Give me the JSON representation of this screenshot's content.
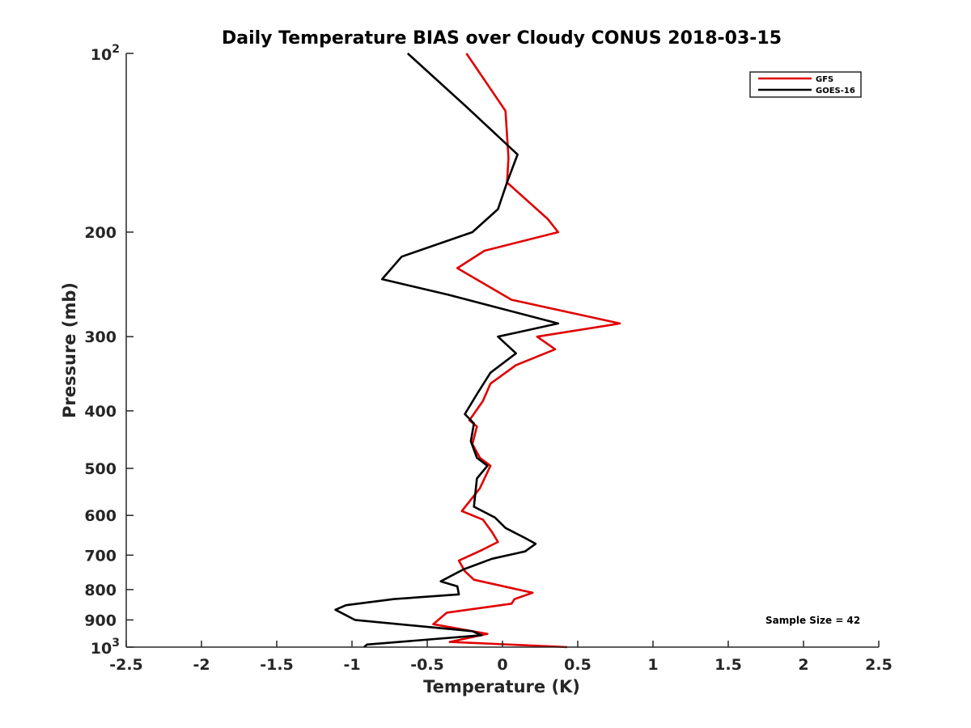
{
  "chart_data": {
    "type": "line",
    "title": "Daily Temperature BIAS over Cloudy CONUS 2018-03-15",
    "xlabel": "Temperature (K)",
    "ylabel": "Pressure (mb)",
    "xlim": [
      -2.5,
      2.5
    ],
    "ylim": [
      1000,
      100
    ],
    "yscale": "log",
    "ydirection": "reversed",
    "grid": false,
    "legend_position": "top-right",
    "x_ticks": [
      -2.5,
      -2,
      -1.5,
      -1,
      -0.5,
      0,
      0.5,
      1,
      1.5,
      2,
      2.5
    ],
    "x_tick_labels": [
      "-2.5",
      "-2",
      "-1.5",
      "-1",
      "-0.5",
      "0",
      "0.5",
      "1",
      "1.5",
      "2",
      "2.5"
    ],
    "y_ticks": [
      100,
      200,
      300,
      400,
      500,
      600,
      700,
      800,
      900,
      1000
    ],
    "y_tick_labels": [
      {
        "base": "10",
        "exp": "2"
      },
      {
        "base": "200",
        "exp": ""
      },
      {
        "base": "300",
        "exp": ""
      },
      {
        "base": "400",
        "exp": ""
      },
      {
        "base": "500",
        "exp": ""
      },
      {
        "base": "600",
        "exp": ""
      },
      {
        "base": "700",
        "exp": ""
      },
      {
        "base": "800",
        "exp": ""
      },
      {
        "base": "900",
        "exp": ""
      },
      {
        "base": "10",
        "exp": "3"
      }
    ],
    "series": [
      {
        "name": "GFS",
        "color": "#e00000",
        "points": [
          {
            "x": -0.24,
            "y": 100
          },
          {
            "x": 0.02,
            "y": 125
          },
          {
            "x": 0.04,
            "y": 150
          },
          {
            "x": 0.03,
            "y": 165
          },
          {
            "x": 0.3,
            "y": 190
          },
          {
            "x": 0.37,
            "y": 200
          },
          {
            "x": -0.12,
            "y": 215
          },
          {
            "x": -0.3,
            "y": 230
          },
          {
            "x": 0.06,
            "y": 260
          },
          {
            "x": 0.78,
            "y": 285
          },
          {
            "x": 0.23,
            "y": 300
          },
          {
            "x": 0.35,
            "y": 315
          },
          {
            "x": 0.09,
            "y": 335
          },
          {
            "x": -0.08,
            "y": 360
          },
          {
            "x": -0.13,
            "y": 385
          },
          {
            "x": -0.22,
            "y": 415
          },
          {
            "x": -0.17,
            "y": 425
          },
          {
            "x": -0.2,
            "y": 455
          },
          {
            "x": -0.15,
            "y": 480
          },
          {
            "x": -0.08,
            "y": 495
          },
          {
            "x": -0.15,
            "y": 540
          },
          {
            "x": -0.27,
            "y": 590
          },
          {
            "x": -0.13,
            "y": 610
          },
          {
            "x": -0.07,
            "y": 640
          },
          {
            "x": -0.03,
            "y": 665
          },
          {
            "x": -0.13,
            "y": 685
          },
          {
            "x": -0.29,
            "y": 715
          },
          {
            "x": -0.25,
            "y": 745
          },
          {
            "x": -0.19,
            "y": 770
          },
          {
            "x": 0.2,
            "y": 810
          },
          {
            "x": 0.08,
            "y": 830
          },
          {
            "x": 0.06,
            "y": 845
          },
          {
            "x": -0.37,
            "y": 875
          },
          {
            "x": -0.46,
            "y": 915
          },
          {
            "x": -0.1,
            "y": 950
          },
          {
            "x": -0.35,
            "y": 980
          },
          {
            "x": 0.43,
            "y": 1000
          }
        ]
      },
      {
        "name": "GOES-16",
        "color": "#000000",
        "points": [
          {
            "x": -0.63,
            "y": 100
          },
          {
            "x": -0.24,
            "y": 123
          },
          {
            "x": 0.1,
            "y": 148
          },
          {
            "x": 0.03,
            "y": 165
          },
          {
            "x": -0.03,
            "y": 183
          },
          {
            "x": -0.2,
            "y": 200
          },
          {
            "x": -0.67,
            "y": 220
          },
          {
            "x": -0.8,
            "y": 240
          },
          {
            "x": -0.36,
            "y": 255
          },
          {
            "x": 0.37,
            "y": 285
          },
          {
            "x": -0.03,
            "y": 300
          },
          {
            "x": 0.09,
            "y": 320
          },
          {
            "x": -0.08,
            "y": 345
          },
          {
            "x": -0.17,
            "y": 375
          },
          {
            "x": -0.25,
            "y": 405
          },
          {
            "x": -0.19,
            "y": 420
          },
          {
            "x": -0.21,
            "y": 450
          },
          {
            "x": -0.17,
            "y": 480
          },
          {
            "x": -0.1,
            "y": 495
          },
          {
            "x": -0.17,
            "y": 520
          },
          {
            "x": -0.19,
            "y": 580
          },
          {
            "x": -0.05,
            "y": 605
          },
          {
            "x": 0.02,
            "y": 630
          },
          {
            "x": 0.15,
            "y": 655
          },
          {
            "x": 0.22,
            "y": 670
          },
          {
            "x": 0.15,
            "y": 690
          },
          {
            "x": -0.07,
            "y": 710
          },
          {
            "x": -0.26,
            "y": 740
          },
          {
            "x": -0.41,
            "y": 775
          },
          {
            "x": -0.3,
            "y": 790
          },
          {
            "x": -0.29,
            "y": 815
          },
          {
            "x": -0.72,
            "y": 830
          },
          {
            "x": -1.04,
            "y": 850
          },
          {
            "x": -1.11,
            "y": 865
          },
          {
            "x": -0.98,
            "y": 900
          },
          {
            "x": -0.2,
            "y": 940
          },
          {
            "x": -0.14,
            "y": 955
          },
          {
            "x": -0.9,
            "y": 990
          },
          {
            "x": -0.92,
            "y": 1000
          }
        ]
      }
    ],
    "annotation": "Sample Size = 42"
  }
}
